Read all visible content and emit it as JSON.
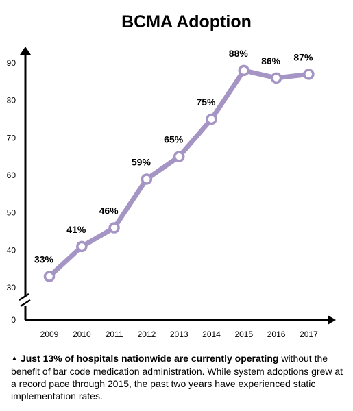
{
  "colors": {
    "line": "#a595c4",
    "axis": "#000000",
    "marker_fill": "#ffffff"
  },
  "chart_data": {
    "type": "line",
    "title": "BCMA Adoption",
    "xlabel": "",
    "ylabel": "",
    "x": [
      "2009",
      "2010",
      "2011",
      "2012",
      "2013",
      "2014",
      "2015",
      "2016",
      "2017"
    ],
    "series": [
      {
        "values": [
          33,
          41,
          46,
          59,
          65,
          75,
          88,
          86,
          87
        ]
      }
    ],
    "data_labels": [
      "33%",
      "41%",
      "46%",
      "59%",
      "65%",
      "75%",
      "88%",
      "86%",
      "87%"
    ],
    "y_ticks": [
      "0",
      "30",
      "40",
      "50",
      "60",
      "70",
      "80",
      "90"
    ],
    "ylim": [
      30,
      95
    ],
    "axis_break": true,
    "grid": false,
    "legend": "none"
  },
  "caption": {
    "marker_icon": "triangle-up-icon",
    "lead": "Just 13% of hospitals nationwide are currently operating",
    "rest": "without the benefit of bar code medication administration. While system adoptions grew at a record pace through 2015, the past two years have experienced static implementation rates."
  }
}
